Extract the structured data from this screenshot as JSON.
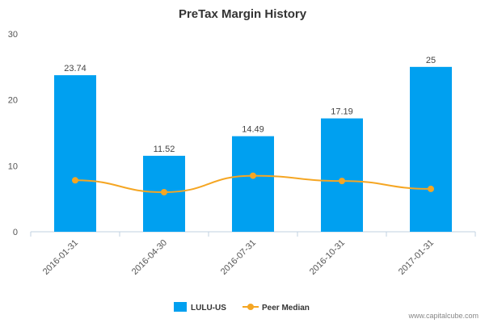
{
  "chart_data": {
    "type": "bar",
    "title": "PreTax Margin History",
    "categories": [
      "2016-01-31",
      "2016-04-30",
      "2016-07-31",
      "2016-10-31",
      "2017-01-31"
    ],
    "ylim": [
      0,
      30
    ],
    "yticks": [
      0,
      10,
      20,
      30
    ],
    "grid": false,
    "legend_placement": "bottom",
    "series": [
      {
        "name": "LULU-US",
        "type": "bar",
        "color": "#00a0f0",
        "values": [
          23.74,
          11.52,
          14.49,
          17.19,
          25
        ],
        "labels": [
          "23.74",
          "11.52",
          "14.49",
          "17.19",
          "25"
        ]
      },
      {
        "name": "Peer Median",
        "type": "line",
        "color": "#f5a623",
        "values": [
          7.8,
          6.0,
          8.5,
          7.7,
          6.5
        ]
      }
    ]
  },
  "credit": "www.capitalcube.com"
}
